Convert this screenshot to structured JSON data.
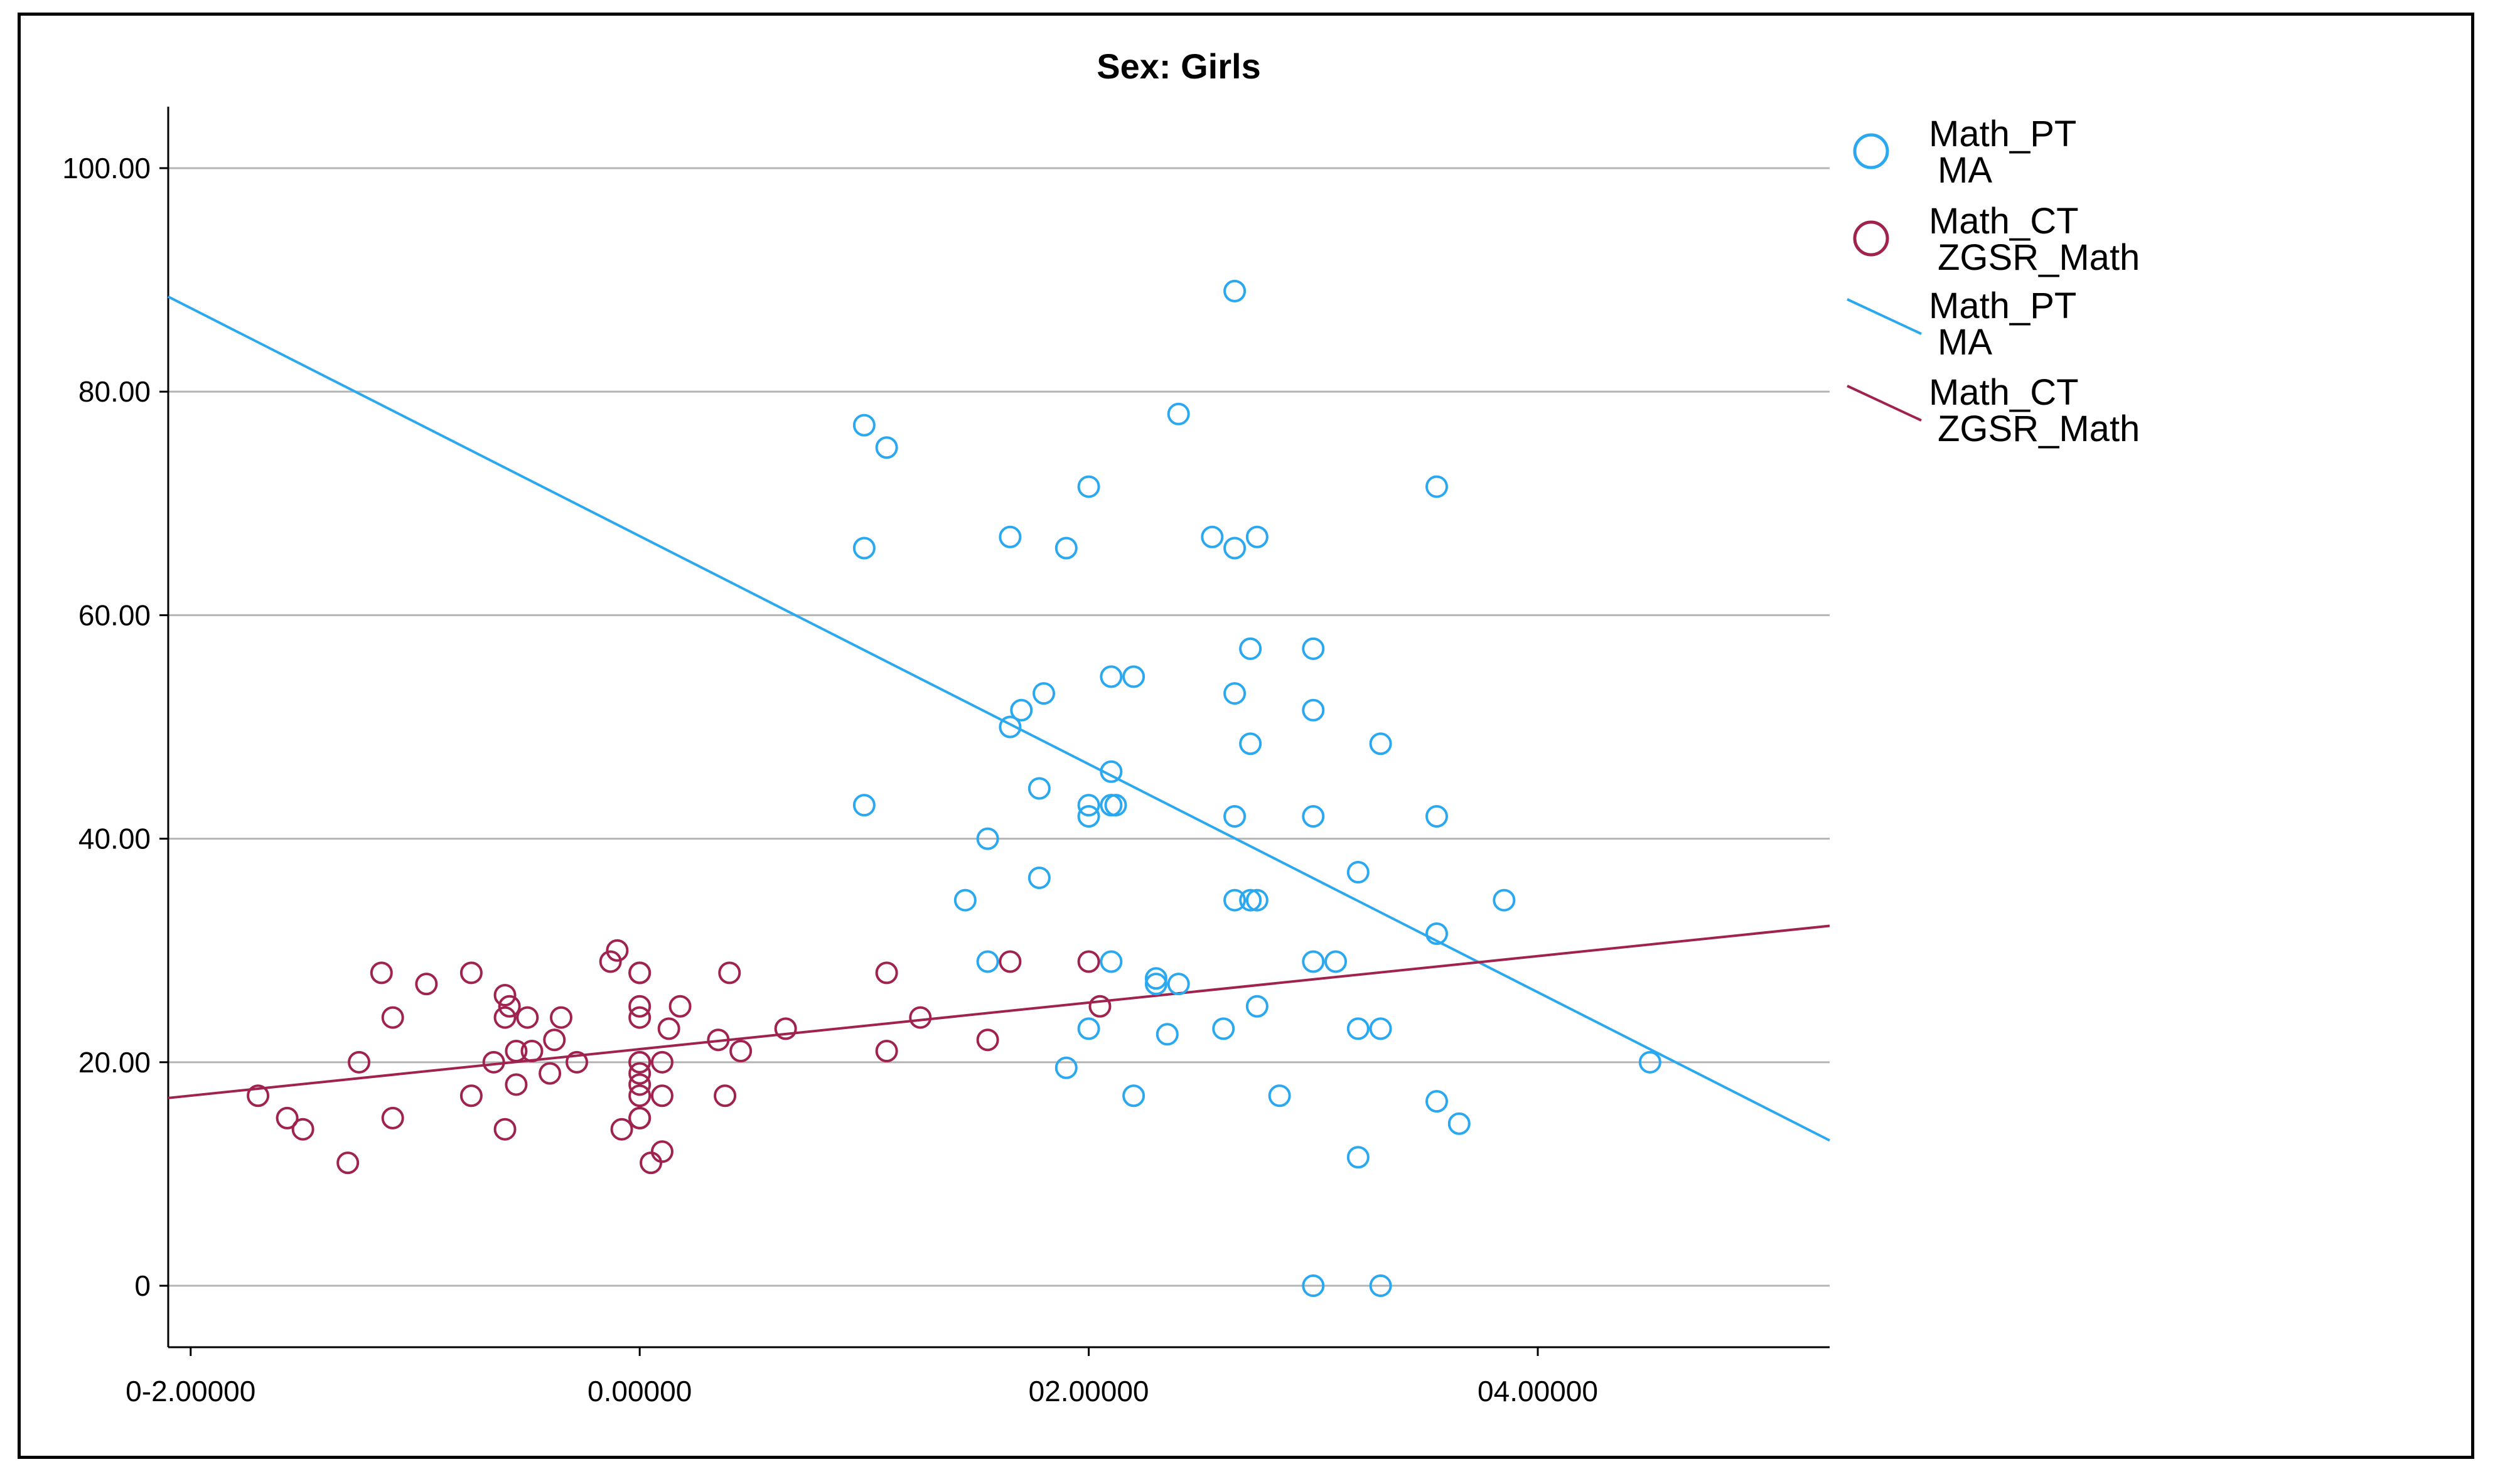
{
  "chart_data": {
    "type": "scatter",
    "title": "Sex: Girls",
    "xlabel": "",
    "ylabel": "",
    "xlim": [
      -2.1,
      5.3
    ],
    "ylim": [
      -5.5,
      105.5
    ],
    "x_ticks": [
      {
        "value": -2.0,
        "label": "0-2.00000"
      },
      {
        "value": 0.0,
        "label": "0.00000"
      },
      {
        "value": 2.0,
        "label": "02.00000"
      },
      {
        "value": 4.0,
        "label": "04.00000"
      }
    ],
    "y_ticks": [
      {
        "value": 0,
        "label": "0"
      },
      {
        "value": 20,
        "label": "20.00"
      },
      {
        "value": 40,
        "label": "40.00"
      },
      {
        "value": 60,
        "label": "60.00"
      },
      {
        "value": 80,
        "label": "80.00"
      },
      {
        "value": 100,
        "label": "100.00"
      }
    ],
    "grid": "horizontal",
    "legend_position": "right",
    "series": [
      {
        "name": "Math_PT MA",
        "legend_label": [
          "Math_PT",
          "MA"
        ],
        "kind": "scatter",
        "color": "#2aa8f0",
        "points": [
          [
            1.0,
            77.0
          ],
          [
            1.1,
            75.0
          ],
          [
            1.0,
            66.0
          ],
          [
            1.0,
            43.0
          ],
          [
            2.0,
            71.5
          ],
          [
            2.4,
            78.0
          ],
          [
            2.65,
            89.0
          ],
          [
            1.65,
            67.0
          ],
          [
            1.9,
            66.0
          ],
          [
            2.55,
            67.0
          ],
          [
            2.65,
            66.0
          ],
          [
            2.75,
            67.0
          ],
          [
            3.55,
            71.5
          ],
          [
            2.1,
            54.5
          ],
          [
            2.2,
            54.5
          ],
          [
            1.8,
            53.0
          ],
          [
            1.7,
            51.5
          ],
          [
            1.65,
            50.0
          ],
          [
            2.65,
            53.0
          ],
          [
            2.72,
            57.0
          ],
          [
            3.0,
            57.0
          ],
          [
            3.0,
            51.5
          ],
          [
            2.72,
            48.5
          ],
          [
            3.3,
            48.5
          ],
          [
            2.1,
            46.0
          ],
          [
            1.78,
            44.5
          ],
          [
            2.0,
            43.0
          ],
          [
            2.1,
            43.0
          ],
          [
            2.12,
            43.0
          ],
          [
            2.0,
            42.0
          ],
          [
            2.65,
            42.0
          ],
          [
            3.0,
            42.0
          ],
          [
            3.55,
            42.0
          ],
          [
            1.55,
            40.0
          ],
          [
            1.78,
            36.5
          ],
          [
            1.45,
            34.5
          ],
          [
            2.65,
            34.5
          ],
          [
            2.72,
            34.5
          ],
          [
            2.75,
            34.5
          ],
          [
            3.2,
            37.0
          ],
          [
            3.85,
            34.5
          ],
          [
            3.55,
            31.5
          ],
          [
            1.55,
            29.0
          ],
          [
            2.1,
            29.0
          ],
          [
            2.3,
            27.5
          ],
          [
            2.3,
            27.0
          ],
          [
            2.4,
            27.0
          ],
          [
            3.0,
            29.0
          ],
          [
            3.1,
            29.0
          ],
          [
            2.75,
            25.0
          ],
          [
            2.0,
            23.0
          ],
          [
            2.35,
            22.5
          ],
          [
            2.6,
            23.0
          ],
          [
            3.2,
            23.0
          ],
          [
            3.3,
            23.0
          ],
          [
            1.9,
            19.5
          ],
          [
            2.2,
            17.0
          ],
          [
            2.85,
            17.0
          ],
          [
            3.55,
            16.5
          ],
          [
            3.65,
            14.5
          ],
          [
            3.2,
            11.5
          ],
          [
            4.5,
            20.0
          ],
          [
            3.0,
            0.0
          ],
          [
            3.3,
            0.0
          ]
        ]
      },
      {
        "name": "Math_CT ZGSR_Math",
        "legend_label": [
          "Math_CT",
          "ZGSR_Math"
        ],
        "kind": "scatter",
        "color": "#a0234f",
        "points": [
          [
            -1.7,
            17.0
          ],
          [
            -1.57,
            15.0
          ],
          [
            -1.5,
            14.0
          ],
          [
            -1.3,
            11.0
          ],
          [
            -1.25,
            20.0
          ],
          [
            -1.15,
            28.0
          ],
          [
            -1.1,
            24.0
          ],
          [
            -1.1,
            15.0
          ],
          [
            -0.95,
            27.0
          ],
          [
            -0.75,
            28.0
          ],
          [
            -0.75,
            17.0
          ],
          [
            -0.65,
            20.0
          ],
          [
            -0.6,
            26.0
          ],
          [
            -0.6,
            24.0
          ],
          [
            -0.58,
            25.0
          ],
          [
            -0.55,
            21.0
          ],
          [
            -0.55,
            18.0
          ],
          [
            -0.6,
            14.0
          ],
          [
            -0.5,
            24.0
          ],
          [
            -0.48,
            21.0
          ],
          [
            -0.4,
            19.0
          ],
          [
            -0.38,
            22.0
          ],
          [
            -0.35,
            24.0
          ],
          [
            -0.28,
            20.0
          ],
          [
            -0.13,
            29.0
          ],
          [
            -0.1,
            30.0
          ],
          [
            -0.08,
            14.0
          ],
          [
            0.0,
            28.0
          ],
          [
            0.0,
            28.0
          ],
          [
            0.0,
            25.0
          ],
          [
            0.0,
            24.0
          ],
          [
            0.0,
            20.0
          ],
          [
            0.0,
            20.0
          ],
          [
            0.0,
            19.0
          ],
          [
            0.0,
            18.0
          ],
          [
            0.0,
            17.0
          ],
          [
            0.0,
            15.0
          ],
          [
            0.0,
            15.0
          ],
          [
            0.05,
            11.0
          ],
          [
            0.1,
            12.0
          ],
          [
            0.1,
            17.0
          ],
          [
            0.1,
            20.0
          ],
          [
            0.13,
            23.0
          ],
          [
            0.18,
            25.0
          ],
          [
            0.35,
            22.0
          ],
          [
            0.38,
            17.0
          ],
          [
            0.4,
            28.0
          ],
          [
            0.45,
            21.0
          ],
          [
            0.65,
            23.0
          ],
          [
            1.1,
            28.0
          ],
          [
            1.1,
            21.0
          ],
          [
            1.25,
            24.0
          ],
          [
            1.55,
            22.0
          ],
          [
            1.65,
            29.0
          ],
          [
            2.0,
            29.0
          ],
          [
            2.05,
            25.0
          ]
        ]
      }
    ],
    "fit_lines": [
      {
        "name": "Math_PT MA",
        "legend_label": [
          "Math_PT",
          "MA"
        ],
        "color": "#2aa8f0",
        "x": [
          -2.1,
          5.3
        ],
        "y": [
          88.5,
          13.0
        ]
      },
      {
        "name": "Math_CT ZGSR_Math",
        "legend_label": [
          "Math_CT",
          "ZGSR_Math"
        ],
        "color": "#a0234f",
        "x": [
          -2.1,
          5.3
        ],
        "y": [
          16.8,
          32.2
        ]
      }
    ]
  }
}
